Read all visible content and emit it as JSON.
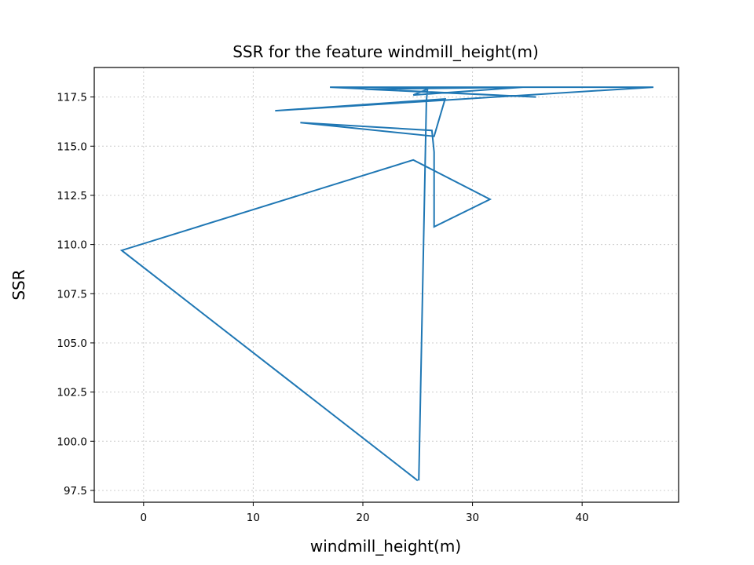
{
  "chart_data": {
    "type": "line",
    "title": "SSR for the feature windmill_height(m)",
    "xlabel": "windmill_height(m)",
    "ylabel": "SSR",
    "xlim": [
      -4.5,
      48.8
    ],
    "ylim": [
      96.9,
      119.0
    ],
    "xticks": [
      0,
      10,
      20,
      30,
      40
    ],
    "yticks": [
      97.5,
      100.0,
      102.5,
      105.0,
      107.5,
      110.0,
      112.5,
      115.0,
      117.5
    ],
    "xtick_labels": [
      "0",
      "10",
      "20",
      "30",
      "40"
    ],
    "ytick_labels": [
      "97.5",
      "100.0",
      "102.5",
      "105.0",
      "107.5",
      "110.0",
      "112.5",
      "115.0",
      "117.5"
    ],
    "grid": true,
    "line_color": "#1f77b4",
    "series": [
      {
        "x": [
          25.0,
          -2.0,
          24.6,
          31.6,
          26.5,
          26.5,
          26.3,
          14.3,
          26.5,
          27.5,
          12.0,
          46.5,
          17.0,
          35.8,
          20.2,
          34.6,
          24.6,
          25.9,
          25.8,
          25.1
        ],
        "y": [
          98.0,
          109.7,
          114.3,
          112.3,
          110.9,
          114.7,
          115.8,
          116.2,
          115.5,
          117.4,
          116.8,
          118.0,
          118.0,
          117.5,
          117.9,
          118.0,
          117.6,
          117.9,
          117.3,
          98.0
        ]
      }
    ]
  }
}
